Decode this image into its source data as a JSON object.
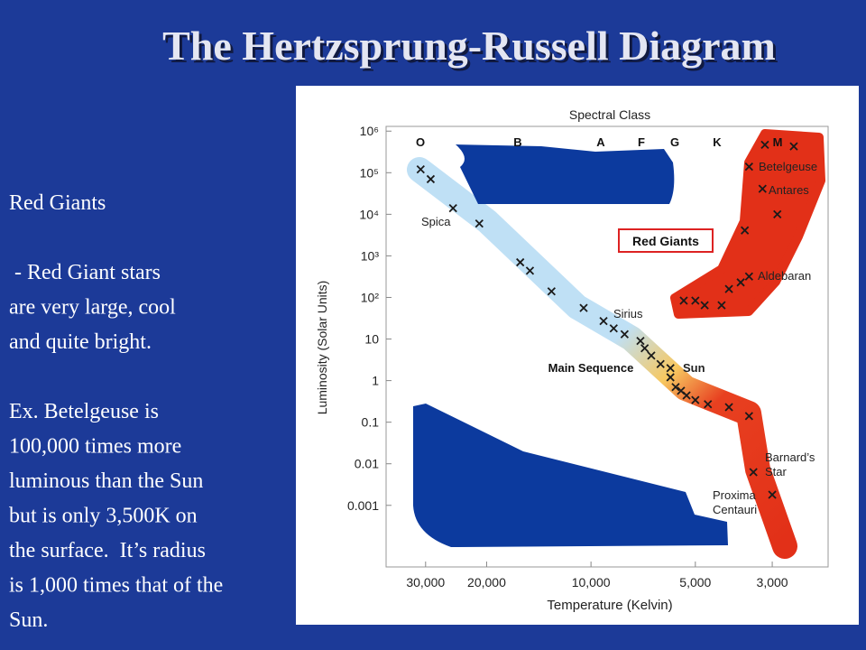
{
  "slide": {
    "title": "The Hertzsprung-Russell Diagram",
    "body": [
      [
        "Red Giants"
      ],
      [
        " - Red Giant stars",
        "are very large, cool",
        "and quite bright."
      ],
      [
        "Ex. Betelgeuse is",
        "100,000 times more",
        "luminous than the Sun",
        "but is only 3,500K on",
        "the surface.  It’s radius",
        "is 1,000 times that of the",
        "Sun."
      ]
    ]
  },
  "chart_data": {
    "type": "scatter",
    "top_axis_label": "Spectral Class",
    "spectral_classes": [
      "O",
      "B",
      "A",
      "F",
      "G",
      "K",
      "M"
    ],
    "x_label": "Temperature (Kelvin)",
    "y_label": "Luminosity (Solar Units)",
    "log_x": true,
    "log_y": true,
    "grid": false,
    "xlim": [
      39000,
      2070
    ],
    "ylim": [
      3.3e-05,
      1300000
    ],
    "xticks": [
      {
        "value": 30000,
        "label": "30,000"
      },
      {
        "value": 20000,
        "label": "20,000"
      },
      {
        "value": 10000,
        "label": "10,000"
      },
      {
        "value": 5000,
        "label": "5,000"
      },
      {
        "value": 3000,
        "label": "3,000"
      }
    ],
    "yticks": [
      {
        "value": 1000000,
        "label": "10⁶"
      },
      {
        "value": 100000,
        "label": "10⁵"
      },
      {
        "value": 10000,
        "label": "10⁴"
      },
      {
        "value": 1000,
        "label": "10³"
      },
      {
        "value": 100,
        "label": "10²"
      },
      10,
      1,
      0.1,
      0.01,
      0.001
    ],
    "series": [
      {
        "name": "Main Sequence",
        "color": "#1a1a1a",
        "x": [
          31000,
          29000,
          25000,
          21000,
          16000,
          15000,
          13000,
          10500,
          9200,
          8600,
          8000,
          7200,
          7000,
          6700,
          6300,
          5900,
          5900,
          5700,
          5500,
          5300,
          5000,
          4600,
          4000,
          3500,
          3400,
          3000
        ],
        "values": [
          120000,
          70000,
          14000,
          6000,
          700,
          440,
          140,
          56,
          27,
          18,
          13,
          9,
          6,
          4,
          2.5,
          2,
          1.2,
          0.7,
          0.57,
          0.44,
          0.34,
          0.27,
          0.23,
          0.14,
          0.0063,
          0.0018
        ]
      },
      {
        "name": "Red Giants",
        "color": "#1a1a1a",
        "x": [
          3150,
          2600,
          3500,
          3200,
          2900,
          3600,
          3500,
          3700,
          4000,
          4200,
          4700,
          5000,
          5400
        ],
        "values": [
          470000,
          430000,
          140000,
          41000,
          10000,
          4100,
          320,
          230,
          160,
          65,
          65,
          84,
          84
        ]
      }
    ],
    "annotations": [
      [
        "Spica"
      ],
      [
        "Sirius"
      ],
      [
        "Sun"
      ],
      [
        "Betelgeuse"
      ],
      [
        "Antares"
      ],
      [
        "Aldebaran"
      ],
      [
        "Barnard’s",
        "Star"
      ],
      [
        "Proxima",
        "Centauri"
      ]
    ]
  }
}
